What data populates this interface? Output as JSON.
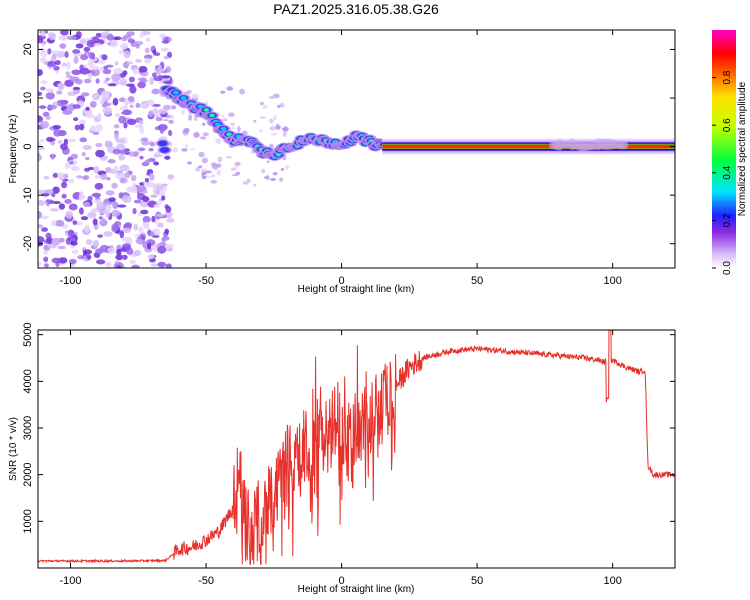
{
  "title": "PAZ1.2025.316.05.38.G26",
  "chart_data": [
    {
      "type": "heatmap",
      "panel": "spectrogram",
      "xlabel": "Height of straight line (km)",
      "ylabel": "Frequency (Hz)",
      "xlim": [
        -112,
        123
      ],
      "ylim": [
        -25,
        24
      ],
      "xticks": [
        -100,
        -50,
        0,
        50,
        100
      ],
      "yticks": [
        -20,
        -10,
        0,
        10,
        20
      ],
      "colorbar": {
        "label": "Normalized spectral amplitude",
        "range": [
          0,
          1
        ],
        "ticks": [
          0.0,
          0.2,
          0.4,
          0.6,
          0.8
        ]
      },
      "ridge": {
        "description": "dominant frequency vs height",
        "x": [
          -65,
          -60,
          -55,
          -50,
          -45,
          -40,
          -35,
          -30,
          -25,
          -20,
          -15,
          -10,
          -5,
          0,
          5,
          10,
          15,
          30,
          50,
          70,
          85,
          90,
          95,
          100,
          110,
          123
        ],
        "y": [
          12,
          10,
          8.5,
          7,
          4,
          1,
          2,
          -1,
          -1.5,
          0,
          1,
          1.5,
          1,
          0.5,
          2,
          1,
          0,
          0,
          0,
          0,
          0.5,
          0,
          0.5,
          0.5,
          0,
          0
        ]
      }
    },
    {
      "type": "line",
      "panel": "snr",
      "xlabel": "Height of straight line (km)",
      "ylabel": "SNR (10 * v/v)",
      "xlim": [
        -112,
        123
      ],
      "ylim": [
        0,
        5100
      ],
      "xticks": [
        -100,
        -50,
        0,
        50,
        100
      ],
      "yticks": [
        1000,
        2000,
        3000,
        4000,
        5000
      ],
      "color": "#e8302a",
      "series": [
        {
          "name": "SNR",
          "x": [
            -112,
            -100,
            -80,
            -65,
            -60,
            -55,
            -50,
            -45,
            -40,
            -38,
            -35,
            -30,
            -25,
            -20,
            -15,
            -10,
            -5,
            0,
            5,
            10,
            15,
            20,
            25,
            30,
            40,
            50,
            60,
            70,
            80,
            90,
            95,
            98,
            100,
            105,
            110,
            112,
            113,
            115,
            123
          ],
          "y": [
            150,
            150,
            150,
            160,
            400,
            450,
            600,
            800,
            1300,
            2200,
            900,
            1200,
            1500,
            2400,
            2300,
            2600,
            2900,
            3000,
            3000,
            3200,
            3500,
            3900,
            4300,
            4500,
            4650,
            4700,
            4650,
            4600,
            4550,
            4500,
            4450,
            4400,
            4450,
            4300,
            4200,
            4250,
            2200,
            2000,
            2000
          ]
        }
      ]
    }
  ]
}
